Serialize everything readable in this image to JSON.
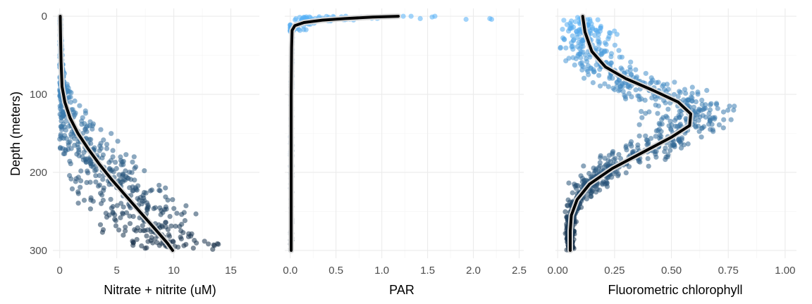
{
  "chart_data": [
    {
      "type": "scatter",
      "panel": "nitrate",
      "xlabel": "Nitrate + nitrite (uM)",
      "ylabel": "Depth (meters)",
      "xlim": [
        -0.6,
        17.5
      ],
      "ylim": [
        310,
        -10
      ],
      "y_reversed": true,
      "x_ticks": [
        0,
        5,
        10,
        15
      ],
      "x_tick_labels": [
        "0",
        "5",
        "10",
        "15"
      ],
      "y_ticks": [
        0,
        100,
        200,
        300
      ],
      "y_tick_labels": [
        "0",
        "100",
        "200",
        "300"
      ],
      "grid": true,
      "point_color_by_depth": true,
      "trend_line": {
        "x": [
          0.05,
          0.08,
          0.12,
          0.2,
          0.45,
          0.9,
          1.6,
          2.5,
          3.5,
          4.6,
          5.8,
          7.0,
          8.2,
          9.4,
          9.9
        ],
        "y": [
          0,
          30,
          60,
          90,
          110,
          130,
          150,
          170,
          190,
          210,
          230,
          250,
          270,
          290,
          300
        ]
      },
      "scatter_profile": {
        "depth": [
          0,
          30,
          60,
          90,
          110,
          130,
          150,
          170,
          190,
          210,
          230,
          250,
          270,
          290,
          300
        ],
        "center": [
          0.05,
          0.08,
          0.12,
          0.2,
          0.45,
          0.9,
          1.6,
          2.5,
          3.5,
          4.6,
          5.8,
          7.0,
          8.2,
          9.4,
          9.9
        ],
        "spread": [
          0.05,
          0.05,
          0.1,
          0.3,
          0.8,
          1.2,
          1.6,
          2.0,
          2.3,
          2.5,
          2.7,
          2.9,
          3.0,
          3.2,
          3.6
        ],
        "x_max": 17
      }
    },
    {
      "type": "scatter",
      "panel": "par",
      "xlabel": "PAR",
      "ylabel": "",
      "xlim": [
        -0.06,
        2.55
      ],
      "ylim": [
        310,
        -10
      ],
      "y_reversed": true,
      "x_ticks": [
        0,
        0.5,
        1.0,
        1.5,
        2.0,
        2.5
      ],
      "x_tick_labels": [
        "0.0",
        "0.5",
        "1.0",
        "1.5",
        "2.0",
        "2.5"
      ],
      "y_ticks": [
        0,
        100,
        200,
        300
      ],
      "grid": true,
      "point_color_by_depth": true,
      "trend_line": {
        "x": [
          1.18,
          0.9,
          0.6,
          0.35,
          0.15,
          0.05,
          0.02,
          0.015,
          0.01,
          0.01,
          0.01
        ],
        "y": [
          0,
          1,
          3,
          5,
          8,
          12,
          18,
          40,
          100,
          200,
          300
        ]
      },
      "surface_points": {
        "x": [
          1.32,
          1.42,
          1.55,
          1.58,
          1.92,
          2.18,
          2.2
        ],
        "y": [
          0,
          3,
          1,
          0,
          4,
          3,
          4
        ]
      }
    },
    {
      "type": "scatter",
      "panel": "chlorophyll",
      "xlabel": "Fluorometric chlorophyll",
      "ylabel": "",
      "xlim": [
        -0.01,
        1.05
      ],
      "ylim": [
        310,
        -10
      ],
      "y_reversed": true,
      "x_ticks": [
        0,
        0.25,
        0.5,
        0.75,
        1.0
      ],
      "x_tick_labels": [
        "0.00",
        "0.25",
        "0.50",
        "0.75",
        "1.00"
      ],
      "y_ticks": [
        0,
        100,
        200,
        300
      ],
      "grid": true,
      "point_color_by_depth": true,
      "trend_line": {
        "x": [
          0.11,
          0.12,
          0.15,
          0.21,
          0.3,
          0.42,
          0.53,
          0.585,
          0.58,
          0.5,
          0.37,
          0.24,
          0.14,
          0.085,
          0.06,
          0.055,
          0.055
        ],
        "y": [
          0,
          20,
          45,
          65,
          80,
          95,
          110,
          125,
          140,
          155,
          175,
          195,
          215,
          235,
          255,
          275,
          300
        ]
      },
      "scatter_profile": {
        "depth": [
          0,
          20,
          45,
          65,
          80,
          95,
          110,
          125,
          140,
          155,
          175,
          195,
          215,
          235,
          255,
          275,
          300
        ],
        "center": [
          0.11,
          0.12,
          0.15,
          0.21,
          0.3,
          0.42,
          0.53,
          0.585,
          0.58,
          0.5,
          0.37,
          0.24,
          0.14,
          0.085,
          0.06,
          0.055,
          0.055
        ],
        "spread": [
          0.05,
          0.07,
          0.09,
          0.1,
          0.11,
          0.14,
          0.16,
          0.15,
          0.13,
          0.12,
          0.1,
          0.08,
          0.05,
          0.03,
          0.015,
          0.012,
          0.012
        ],
        "x_max": 1.02
      }
    }
  ],
  "colors": {
    "shallow": "#56B1F7",
    "deep": "#132B43",
    "trend_line": "#000000",
    "trend_halo": "#d9d9d9"
  }
}
